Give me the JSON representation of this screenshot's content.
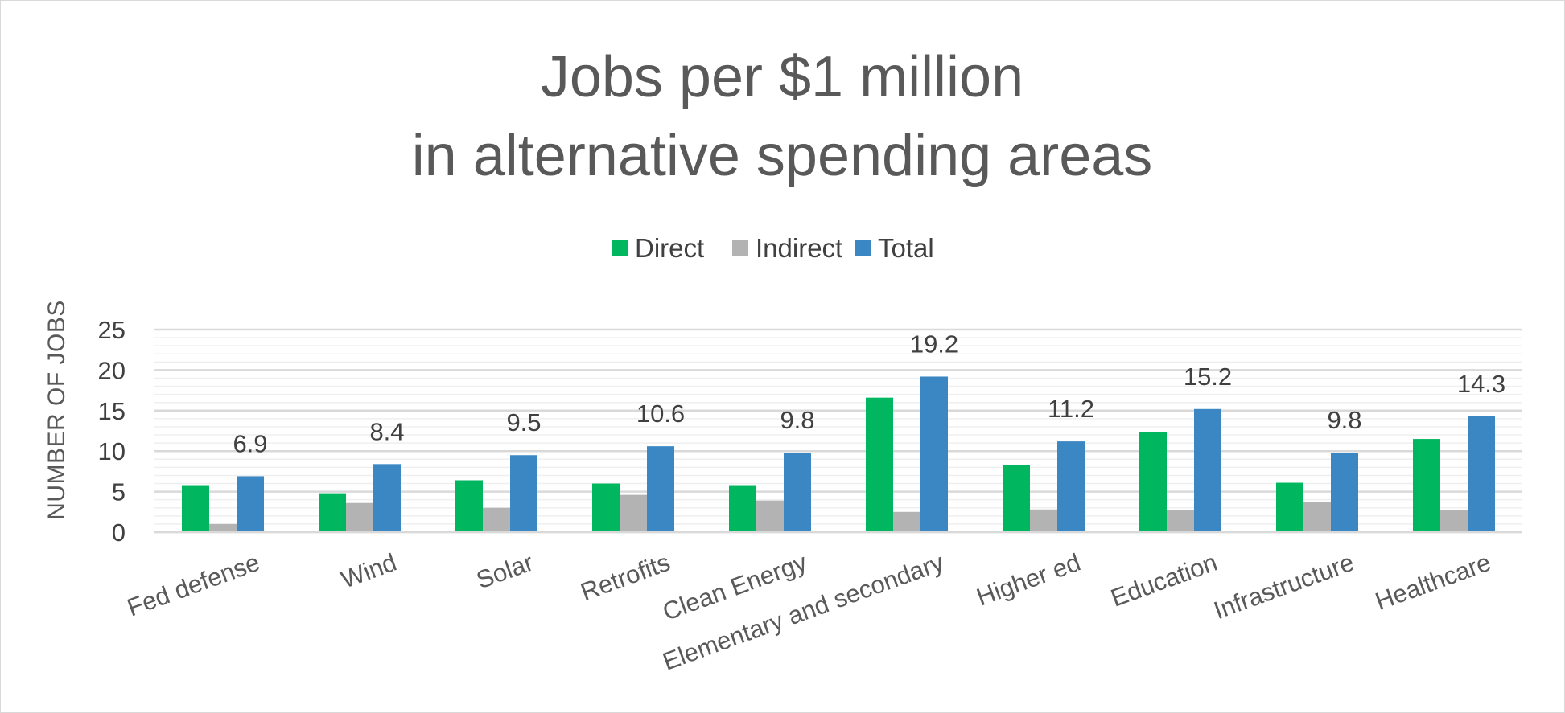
{
  "chart_data": {
    "type": "bar",
    "title_lines": [
      "Jobs per $1 million",
      "in alternative spending areas"
    ],
    "ylabel": "NUMBER OF JOBS",
    "xlabel": "",
    "ylim": [
      0,
      25
    ],
    "yticks": [
      0,
      5,
      10,
      15,
      20,
      25
    ],
    "grid": true,
    "legend_position": "top",
    "categories": [
      "Fed defense",
      "Wind",
      "Solar",
      "Retrofits",
      "Clean Energy",
      "Elementary and secondary",
      "Higher ed",
      "Education",
      "Infrastructure",
      "Healthcare"
    ],
    "series": [
      {
        "name": "Direct",
        "color": "#00b760",
        "values": [
          5.8,
          4.8,
          6.4,
          6.0,
          5.8,
          16.6,
          8.3,
          12.4,
          6.1,
          11.5
        ]
      },
      {
        "name": "Indirect",
        "color": "#b3b3b3",
        "values": [
          1.0,
          3.6,
          3.0,
          4.6,
          3.9,
          2.5,
          2.8,
          2.7,
          3.7,
          2.7
        ]
      },
      {
        "name": "Total",
        "color": "#3b87c4",
        "values": [
          6.9,
          8.4,
          9.5,
          10.6,
          9.8,
          19.2,
          11.2,
          15.2,
          9.8,
          14.3
        ]
      }
    ],
    "data_labels": {
      "series": "Total",
      "values": [
        "6.9",
        "8.4",
        "9.5",
        "10.6",
        "9.8",
        "19.2",
        "11.2",
        "15.2",
        "9.8",
        "14.3"
      ]
    }
  }
}
